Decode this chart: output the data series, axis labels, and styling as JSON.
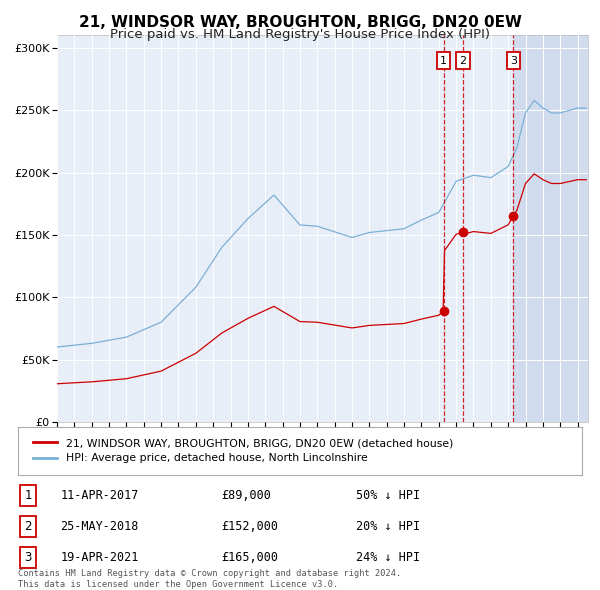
{
  "title": "21, WINDSOR WAY, BROUGHTON, BRIGG, DN20 0EW",
  "subtitle": "Price paid vs. HM Land Registry's House Price Index (HPI)",
  "title_fontsize": 11,
  "subtitle_fontsize": 9.5,
  "legend_line1": "21, WINDSOR WAY, BROUGHTON, BRIGG, DN20 0EW (detached house)",
  "legend_line2": "HPI: Average price, detached house, North Lincolnshire",
  "transactions": [
    {
      "label": "1",
      "date": "11-APR-2017",
      "date_x": 2017.274,
      "price": 89000,
      "pct": "50%",
      "dir": "↓"
    },
    {
      "label": "2",
      "date": "25-MAY-2018",
      "date_x": 2018.397,
      "price": 152000,
      "pct": "20%",
      "dir": "↓"
    },
    {
      "label": "3",
      "date": "19-APR-2021",
      "date_x": 2021.299,
      "price": 165000,
      "pct": "24%",
      "dir": "↓"
    }
  ],
  "vline_color": "#cc0000",
  "dot_color": "#cc0000",
  "hpi_color": "#7ab0d4",
  "price_color": "#cc0000",
  "background_color": "#ffffff",
  "plot_bg_color": "#e8eef8",
  "shaded_region_color": "#d0dcee",
  "grid_color": "#ffffff",
  "ylim": [
    0,
    310000
  ],
  "xlim_start": 1995.0,
  "xlim_end": 2025.6,
  "footer": "Contains HM Land Registry data © Crown copyright and database right 2024.\nThis data is licensed under the Open Government Licence v3.0."
}
